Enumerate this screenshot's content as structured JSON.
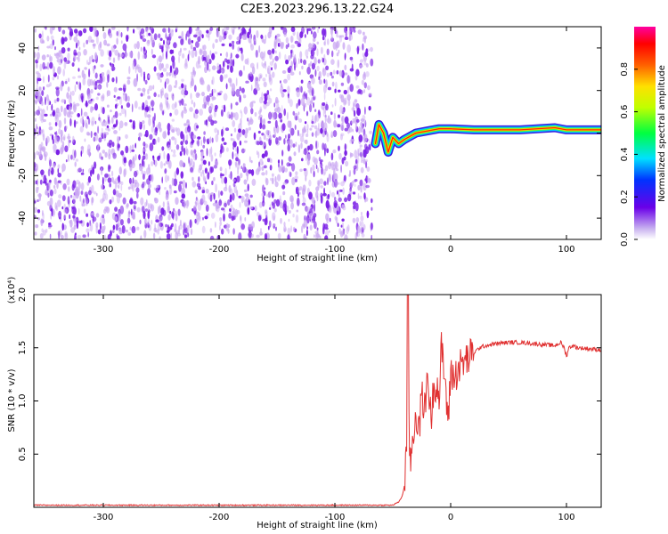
{
  "title": "C2E3.2023.296.13.22.G24",
  "colors": {
    "spectro_noise": "#7a1fe6",
    "spectro_noise_light": "#c9a6f2",
    "snr_line": "#e03030"
  },
  "chart_data": [
    {
      "type": "heatmap",
      "name": "spectrogram",
      "xlabel": "Height of straight line (km)",
      "ylabel": "Frequency (Hz)",
      "xlim": [
        -360,
        130
      ],
      "ylim": [
        -50,
        50
      ],
      "xticks": [
        -300,
        -200,
        -100,
        0,
        100
      ],
      "yticks": [
        -40,
        -20,
        0,
        20,
        40
      ],
      "noise_region_x": [
        -360,
        -68
      ],
      "signal_trace": [
        {
          "x": -65,
          "y": -5
        },
        {
          "x": -62,
          "y": 4
        },
        {
          "x": -58,
          "y": 0
        },
        {
          "x": -54,
          "y": -9
        },
        {
          "x": -50,
          "y": -2
        },
        {
          "x": -45,
          "y": -5
        },
        {
          "x": -40,
          "y": -3
        },
        {
          "x": -30,
          "y": 0
        },
        {
          "x": -20,
          "y": 1
        },
        {
          "x": -10,
          "y": 2
        },
        {
          "x": 0,
          "y": 2
        },
        {
          "x": 20,
          "y": 1.5
        },
        {
          "x": 40,
          "y": 1.5
        },
        {
          "x": 60,
          "y": 1.5
        },
        {
          "x": 90,
          "y": 2.5
        },
        {
          "x": 100,
          "y": 1.5
        },
        {
          "x": 130,
          "y": 1.5
        }
      ],
      "colorbar": {
        "label": "Normalized spectral amplitude",
        "range": [
          0,
          1
        ],
        "ticks": [
          "0.0",
          "0.2",
          "0.4",
          "0.6",
          "0.8"
        ]
      }
    },
    {
      "type": "line",
      "name": "snr",
      "xlabel": "Height of straight line (km)",
      "ylabel": "SNR (10 * v/v)",
      "scale_label": "(x10⁴)",
      "xlim": [
        -360,
        130
      ],
      "ylim": [
        0,
        2.0
      ],
      "xticks": [
        -300,
        -200,
        -100,
        0,
        100
      ],
      "yticks": [
        "0.5",
        "1.0",
        "1.5",
        "2.0"
      ],
      "series": [
        {
          "x": [
            -360,
            -300,
            -200,
            -100,
            -50,
            -45,
            -42,
            -40,
            -38,
            -37,
            -36,
            -35,
            -33,
            -30,
            -27,
            -25,
            -22,
            -20,
            -17,
            -15,
            -12,
            -10,
            -8,
            -5,
            -2,
            0,
            3,
            6,
            10,
            15,
            20,
            25,
            30,
            40,
            50,
            60,
            70,
            80,
            90,
            95,
            98,
            100,
            102,
            105,
            110,
            120,
            130
          ],
          "y": [
            0.02,
            0.02,
            0.02,
            0.02,
            0.02,
            0.05,
            0.1,
            0.2,
            0.6,
            2.0,
            0.8,
            0.4,
            0.6,
            0.9,
            0.7,
            1.1,
            0.9,
            1.3,
            0.8,
            1.1,
            1.2,
            1.0,
            1.5,
            1.2,
            0.8,
            1.3,
            1.2,
            1.3,
            1.35,
            1.4,
            1.45,
            1.5,
            1.52,
            1.54,
            1.55,
            1.55,
            1.54,
            1.53,
            1.52,
            1.55,
            1.5,
            1.42,
            1.5,
            1.52,
            1.5,
            1.49,
            1.48
          ]
        }
      ]
    }
  ]
}
